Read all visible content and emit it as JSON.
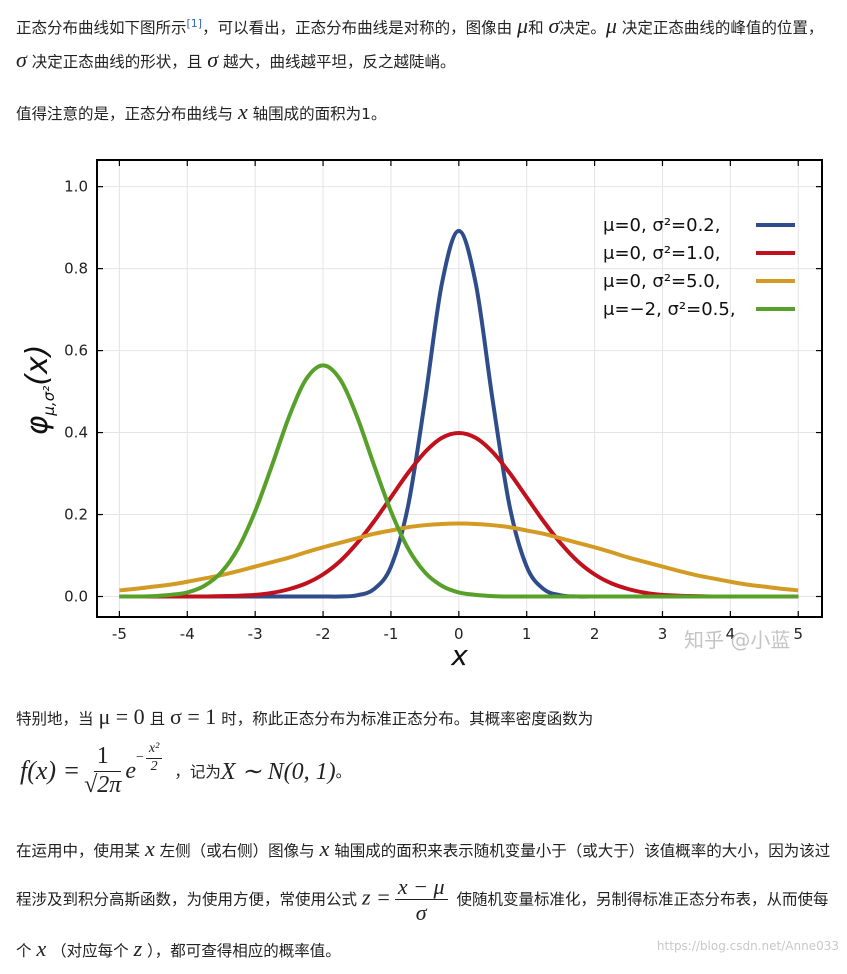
{
  "paragraphs": {
    "p1": [
      "正态分布曲线如下图所示",
      "[1]",
      "，可以看出，正态分布曲线是对称的，图像由 ",
      "μ",
      "和 ",
      "σ",
      "决定。",
      "μ",
      " 决定正态曲线的峰值的位置， ",
      "σ",
      " 决定正态曲线的形状，且 ",
      "σ",
      " 越大，曲线越平坦，反之越陡峭。"
    ],
    "p2": [
      "值得注意的是，正态分布曲线与 ",
      "x",
      " 轴围成的面积为1。"
    ],
    "p3": [
      "特别地，当 ",
      "μ = 0",
      " 且 ",
      "σ = 1",
      " 时，称此正态分布为标准正态分布。其概率密度函数为"
    ],
    "formula": [
      "f(x) =",
      "1",
      "√",
      "2π",
      "e",
      "−",
      "x²",
      "2",
      "，记为 ",
      "X ∼ N(0, 1)",
      " 。"
    ],
    "p4": [
      "在运用中，使用某 ",
      "x",
      " 左侧（或右侧）图像与 ",
      "x",
      " 轴围成的面积来表示随机变量小于（或大于）该值概率的大小，因为该过程涉及到积分高斯函数，为使用方便，常使用公式 ",
      "z =",
      "x − μ",
      "σ",
      " 使随机变量标准化，另制得标准正态分布表，从而使每个 ",
      "x",
      " （对应每个 ",
      "z",
      " ），都可查得相应的概率值。"
    ]
  },
  "image_watermark": "知乎 @小蓝",
  "footer_url": "https://blog.csdn.net/Anne033",
  "chart_data": {
    "type": "line",
    "xlabel": "x",
    "ylabel": [
      "φ",
      "μ,σ²",
      "(x)"
    ],
    "x": [
      -5,
      -4.75,
      -4.5,
      -4.25,
      -4,
      -3.75,
      -3.5,
      -3.25,
      -3,
      -2.75,
      -2.5,
      -2.25,
      -2,
      -1.75,
      -1.5,
      -1.25,
      -1,
      -0.75,
      -0.5,
      -0.25,
      0,
      0.25,
      0.5,
      0.75,
      1,
      1.25,
      1.5,
      1.75,
      2,
      2.25,
      2.5,
      2.75,
      3,
      3.25,
      3.5,
      3.75,
      4,
      4.25,
      4.5,
      4.75,
      5
    ],
    "series": [
      {
        "name": "μ=0,   σ²=0.2,",
        "color": "#2f4d8a",
        "values": [
          0,
          0,
          0,
          0,
          0,
          0,
          0,
          0,
          0,
          0,
          0,
          0,
          0,
          0,
          0.003,
          0.018,
          0.073,
          0.219,
          0.477,
          0.763,
          0.892,
          0.763,
          0.477,
          0.219,
          0.073,
          0.018,
          0.003,
          0,
          0,
          0,
          0,
          0,
          0,
          0,
          0,
          0,
          0,
          0,
          0,
          0,
          0
        ]
      },
      {
        "name": "μ=0,   σ²=1.0,",
        "color": "#c0111c",
        "values": [
          0,
          0,
          0,
          0,
          0,
          0,
          0.001,
          0.002,
          0.004,
          0.009,
          0.018,
          0.032,
          0.054,
          0.086,
          0.13,
          0.183,
          0.242,
          0.301,
          0.352,
          0.387,
          0.399,
          0.387,
          0.352,
          0.301,
          0.242,
          0.183,
          0.13,
          0.086,
          0.054,
          0.032,
          0.018,
          0.009,
          0.004,
          0.002,
          0.001,
          0,
          0,
          0,
          0,
          0,
          0
        ]
      },
      {
        "name": "μ=0,   σ²=5.0,",
        "color": "#d39b24",
        "values": [
          0.015,
          0.019,
          0.024,
          0.029,
          0.036,
          0.044,
          0.052,
          0.062,
          0.073,
          0.084,
          0.095,
          0.108,
          0.12,
          0.131,
          0.142,
          0.153,
          0.161,
          0.169,
          0.174,
          0.177,
          0.178,
          0.177,
          0.174,
          0.169,
          0.161,
          0.153,
          0.142,
          0.131,
          0.12,
          0.108,
          0.095,
          0.084,
          0.073,
          0.062,
          0.052,
          0.044,
          0.036,
          0.029,
          0.024,
          0.019,
          0.015
        ]
      },
      {
        "name": "μ=−2, σ²=0.5,",
        "color": "#57a02a",
        "values": [
          0,
          0,
          0.001,
          0.004,
          0.01,
          0.026,
          0.059,
          0.118,
          0.208,
          0.321,
          0.439,
          0.53,
          0.564,
          0.53,
          0.439,
          0.321,
          0.208,
          0.118,
          0.059,
          0.026,
          0.01,
          0.004,
          0.001,
          0,
          0,
          0,
          0,
          0,
          0,
          0,
          0,
          0,
          0,
          0,
          0,
          0,
          0,
          0,
          0,
          0,
          0
        ]
      }
    ],
    "xlim": [
      -5.33,
      5.35
    ],
    "ylim": [
      -0.05,
      1.065
    ],
    "xticks": [
      -5,
      -4,
      -3,
      -2,
      -1,
      0,
      1,
      2,
      3,
      4,
      5
    ],
    "yticks": [
      {
        "value": 0,
        "label": "0.0"
      },
      0.2,
      0.4,
      0.6,
      0.8,
      {
        "value": 1,
        "label": "1.0"
      }
    ],
    "grid": true,
    "legend": "upper right"
  }
}
